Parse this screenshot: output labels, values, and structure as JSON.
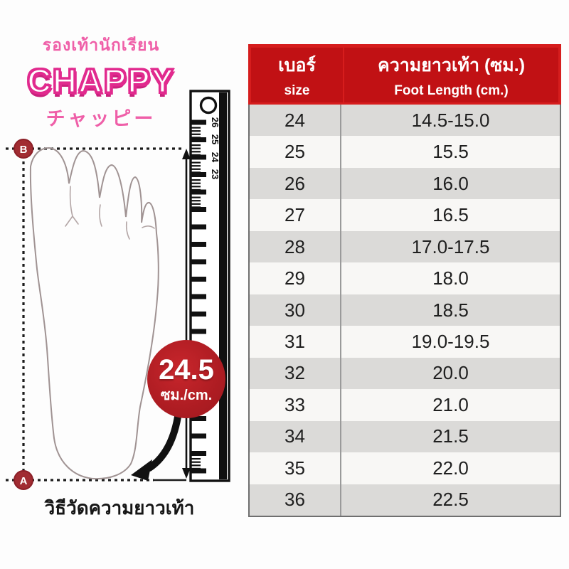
{
  "brand": {
    "tagline_thai": "รองเท้านักเรียน",
    "name": "CHAPPY",
    "name_japanese": "チャッピー"
  },
  "diagram": {
    "marker_top": "B",
    "marker_bottom": "A",
    "ruler_numbers": [
      "26",
      "25",
      "24",
      "23"
    ],
    "badge": {
      "value": "24.5",
      "unit": "ซม./cm."
    },
    "caption": "วิธีวัดความยาวเท้า"
  },
  "table": {
    "header": {
      "col1_line1": "เบอร์",
      "col1_line2": "size",
      "col2_line1": "ความยาวเท้า (ซม.)",
      "col2_line2": "Foot Length (cm.)"
    },
    "rows": [
      {
        "size": "24",
        "length": "14.5-15.0"
      },
      {
        "size": "25",
        "length": "15.5"
      },
      {
        "size": "26",
        "length": "16.0"
      },
      {
        "size": "27",
        "length": "16.5"
      },
      {
        "size": "28",
        "length": "17.0-17.5"
      },
      {
        "size": "29",
        "length": "18.0"
      },
      {
        "size": "30",
        "length": "18.5"
      },
      {
        "size": "31",
        "length": "19.0-19.5"
      },
      {
        "size": "32",
        "length": "20.0"
      },
      {
        "size": "33",
        "length": "21.0"
      },
      {
        "size": "34",
        "length": "21.5"
      },
      {
        "size": "35",
        "length": "22.0"
      },
      {
        "size": "36",
        "length": "22.5"
      }
    ]
  },
  "colors": {
    "header_red": "#c11114",
    "header_border_red": "#d61d1d",
    "badge_red": "#b01d23",
    "marker_red": "#a12c32",
    "brand_pink": "#e12a8e",
    "row_gray": "#dbdad8",
    "row_white": "#f8f7f5"
  },
  "chart_data": {
    "type": "table",
    "columns": [
      "เบอร์ / size",
      "ความยาวเท้า (ซม.) / Foot Length (cm.)"
    ],
    "rows": [
      [
        "24",
        "14.5-15.0"
      ],
      [
        "25",
        "15.5"
      ],
      [
        "26",
        "16.0"
      ],
      [
        "27",
        "16.5"
      ],
      [
        "28",
        "17.0-17.5"
      ],
      [
        "29",
        "18.0"
      ],
      [
        "30",
        "18.5"
      ],
      [
        "31",
        "19.0-19.5"
      ],
      [
        "32",
        "20.0"
      ],
      [
        "33",
        "21.0"
      ],
      [
        "34",
        "21.5"
      ],
      [
        "35",
        "22.0"
      ],
      [
        "36",
        "22.5"
      ]
    ],
    "annotations": [
      "24.5 ซม./cm.",
      "วิธีวัดความยาวเท้า"
    ]
  }
}
